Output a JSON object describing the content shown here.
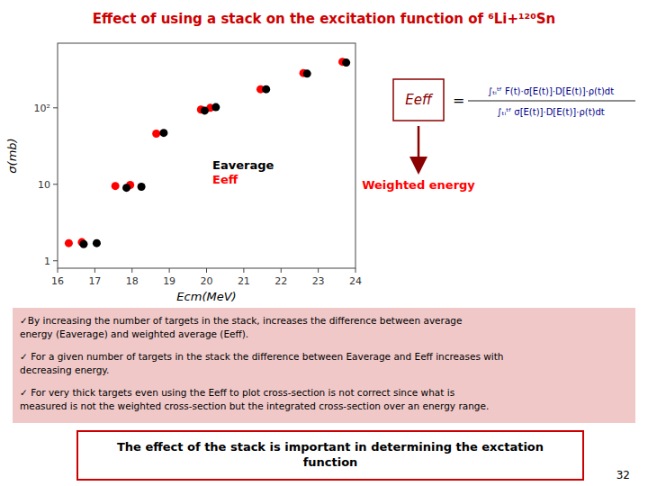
{
  "chart_data": {
    "type": "scatter",
    "title": "Effect of using a stack on the excitation function of ⁶Li+¹²⁰Sn",
    "x_label": "Ecm(MeV)",
    "y_label": "σ(mb)",
    "log": "y",
    "grid": false,
    "xlim": [
      16,
      24
    ],
    "ylim": [
      0.8,
      700
    ],
    "xticks": [
      16,
      17,
      18,
      19,
      20,
      21,
      22,
      23,
      24
    ],
    "yticks": [
      1,
      10,
      {
        "value": 100,
        "label": "10²"
      }
    ],
    "series": [
      {
        "name": "Eeff",
        "color": "red",
        "x": [
          16.3,
          16.65,
          17.55,
          17.95,
          18.65,
          19.85,
          20.1,
          21.45,
          22.6,
          23.65
        ],
        "values": [
          1.7,
          1.75,
          9.5,
          9.8,
          46,
          95,
          100,
          175,
          285,
          400
        ]
      },
      {
        "name": "Eaverage",
        "color": "black",
        "x": [
          16.7,
          17.05,
          17.85,
          18.25,
          18.85,
          19.95,
          20.25,
          21.6,
          22.7,
          23.75
        ],
        "values": [
          1.65,
          1.7,
          9.0,
          9.3,
          47,
          92,
          102,
          175,
          280,
          390
        ]
      }
    ],
    "annotations": [
      "Eeff",
      "=",
      "∫ₜᵢᵗᶠ F(t)·σ[E(t)]·D[E(t)]·ρ(t)dt",
      "∫ₜᵢᵗᶠ σ[E(t)]·D[E(t)]·ρ(t)dt",
      "Weighted energy",
      "✓By increasing the number of targets in the stack, increases the difference between average\nenergy (Eaverage) and weighted average (Eeff).",
      "✓ For a given number of targets in the stack the difference between Eaverage and Eeff increases with\ndecreasing energy.",
      "✓ For very thick targets even using the Eeff to plot cross-section is not correct since what is\nmeasured is not the weighted cross-section but the integrated cross-section over an energy range.",
      "The effect of the stack is important in determining the exctation\nfunction",
      "32"
    ]
  }
}
